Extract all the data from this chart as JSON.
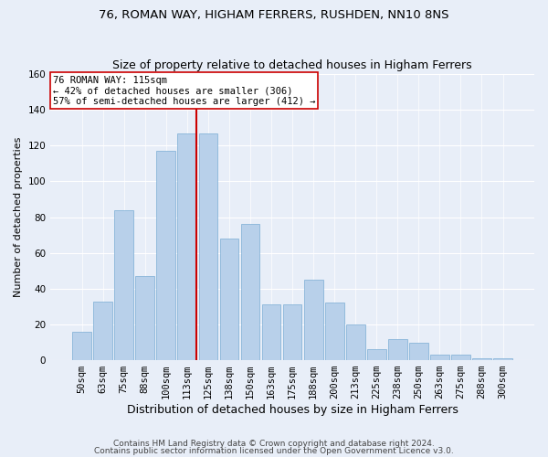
{
  "title": "76, ROMAN WAY, HIGHAM FERRERS, RUSHDEN, NN10 8NS",
  "subtitle": "Size of property relative to detached houses in Higham Ferrers",
  "xlabel": "Distribution of detached houses by size in Higham Ferrers",
  "ylabel": "Number of detached properties",
  "categories": [
    "50sqm",
    "63sqm",
    "75sqm",
    "88sqm",
    "100sqm",
    "113sqm",
    "125sqm",
    "138sqm",
    "150sqm",
    "163sqm",
    "175sqm",
    "188sqm",
    "200sqm",
    "213sqm",
    "225sqm",
    "238sqm",
    "250sqm",
    "263sqm",
    "275sqm",
    "288sqm",
    "300sqm"
  ],
  "values": [
    16,
    33,
    84,
    47,
    117,
    127,
    127,
    68,
    76,
    31,
    31,
    45,
    32,
    20,
    6,
    12,
    10,
    3,
    3,
    1,
    1
  ],
  "bar_color": "#b8d0ea",
  "bar_edge_color": "#7aadd4",
  "background_color": "#e8eef8",
  "grid_color": "#ffffff",
  "property_line_color": "#cc0000",
  "annotation_text": "76 ROMAN WAY: 115sqm\n← 42% of detached houses are smaller (306)\n57% of semi-detached houses are larger (412) →",
  "annotation_box_color": "#ffffff",
  "annotation_box_edge_color": "#cc0000",
  "ylim": [
    0,
    160
  ],
  "yticks": [
    0,
    20,
    40,
    60,
    80,
    100,
    120,
    140,
    160
  ],
  "footer_line1": "Contains HM Land Registry data © Crown copyright and database right 2024.",
  "footer_line2": "Contains public sector information licensed under the Open Government Licence v3.0.",
  "title_fontsize": 9.5,
  "subtitle_fontsize": 9,
  "xlabel_fontsize": 9,
  "ylabel_fontsize": 8,
  "tick_fontsize": 7.5,
  "footer_fontsize": 6.5,
  "annotation_fontsize": 7.5
}
